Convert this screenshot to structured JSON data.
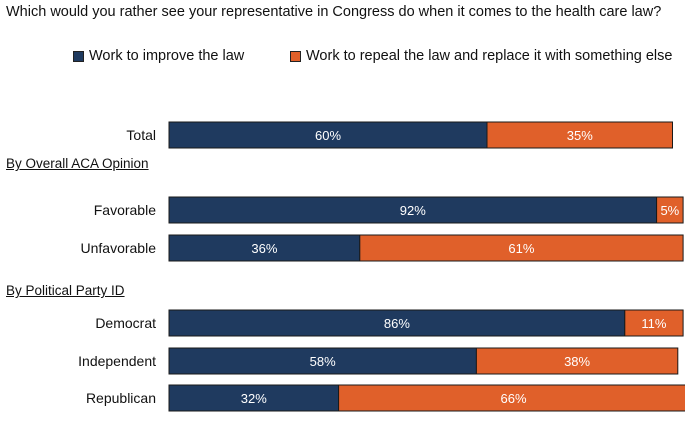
{
  "chart_data": {
    "type": "bar",
    "orientation": "horizontal",
    "stacked": true,
    "title": "Which would you rather see your representative in Congress do when it comes to the health care law?",
    "xlim": [
      0,
      100
    ],
    "grid": false,
    "legend_placement": "top",
    "sections": [
      {
        "label": "",
        "categories": [
          "Total"
        ]
      },
      {
        "label": "By Overall ACA Opinion",
        "categories": [
          "Favorable",
          "Unfavorable"
        ]
      },
      {
        "label": "By Political Party ID",
        "categories": [
          "Democrat",
          "Independent",
          "Republican"
        ]
      }
    ],
    "categories": [
      "Total",
      "Favorable",
      "Unfavorable",
      "Democrat",
      "Independent",
      "Republican"
    ],
    "series": [
      {
        "name": "Work to improve the law",
        "values": [
          60,
          92,
          36,
          86,
          58,
          32
        ],
        "labels": [
          "60%",
          "92%",
          "36%",
          "86%",
          "58%",
          "32%"
        ],
        "color": "#1f3a5f"
      },
      {
        "name": "Work to repeal the law and replace it with something else",
        "values": [
          35,
          5,
          61,
          11,
          38,
          66
        ],
        "labels": [
          "35%",
          "5%",
          "61%",
          "11%",
          "38%",
          "66%"
        ],
        "color": "#e0602a"
      }
    ]
  }
}
